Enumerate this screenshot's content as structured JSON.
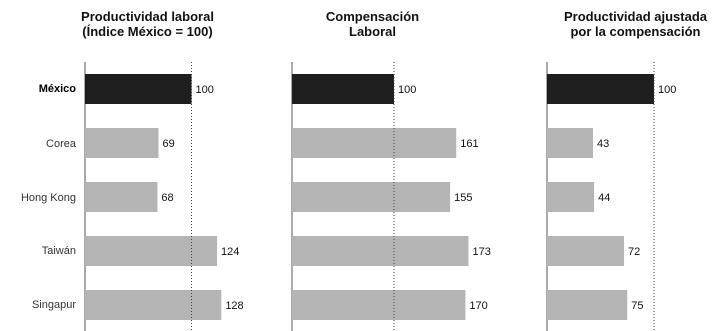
{
  "chart_data": [
    {
      "type": "bar",
      "orientation": "horizontal",
      "title": [
        "Productividad laboral",
        "(Índice México = 100)"
      ],
      "categories": [
        "México",
        "Corea",
        "Hong Kong",
        "Taiwán",
        "Singapur"
      ],
      "values": [
        100,
        69,
        68,
        124,
        128
      ],
      "reference_value": 100,
      "highlight_category": "México",
      "bar_colors": {
        "highlight": "#1e1e1e",
        "default": "#b4b4b4"
      }
    },
    {
      "type": "bar",
      "orientation": "horizontal",
      "title": [
        "Compensación",
        "Laboral"
      ],
      "categories": [
        "México",
        "Corea",
        "Hong Kong",
        "Taiwán",
        "Singapur"
      ],
      "values": [
        100,
        161,
        155,
        173,
        170
      ],
      "reference_value": 100,
      "highlight_category": "México",
      "bar_colors": {
        "highlight": "#1e1e1e",
        "default": "#b4b4b4"
      }
    },
    {
      "type": "bar",
      "orientation": "horizontal",
      "title": [
        "Productividad ajustada",
        "por la compensación"
      ],
      "categories": [
        "México",
        "Corea",
        "Hong Kong",
        "Taiwán",
        "Singapur"
      ],
      "values": [
        100,
        43,
        44,
        72,
        75
      ],
      "reference_value": 100,
      "highlight_category": "México",
      "bar_colors": {
        "highlight": "#1e1e1e",
        "default": "#b4b4b4"
      }
    }
  ]
}
